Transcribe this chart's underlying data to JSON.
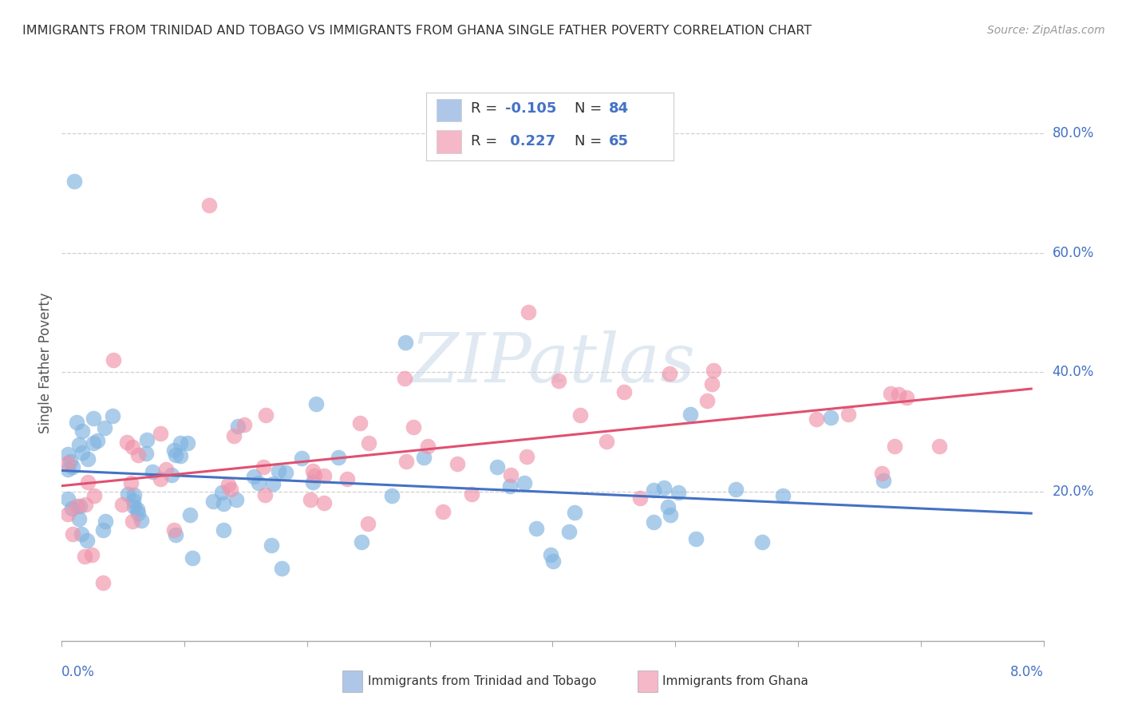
{
  "title": "IMMIGRANTS FROM TRINIDAD AND TOBAGO VS IMMIGRANTS FROM GHANA SINGLE FATHER POVERTY CORRELATION CHART",
  "source": "Source: ZipAtlas.com",
  "ylabel": "Single Father Poverty",
  "y_tick_labels": [
    "20.0%",
    "40.0%",
    "60.0%",
    "80.0%"
  ],
  "y_tick_values": [
    0.2,
    0.4,
    0.6,
    0.8
  ],
  "legend1_color": "#aec6e8",
  "legend2_color": "#f4b8c8",
  "series1_color": "#7fb3e0",
  "series2_color": "#f093aa",
  "trend1_color": "#4472c4",
  "trend2_color": "#e05070",
  "watermark": "ZIPatlas",
  "background_color": "#ffffff",
  "xlim": [
    0.0,
    0.08
  ],
  "ylim": [
    -0.05,
    0.88
  ],
  "series1_seed": 101,
  "series2_seed": 202,
  "series1_N": 84,
  "series2_N": 65
}
